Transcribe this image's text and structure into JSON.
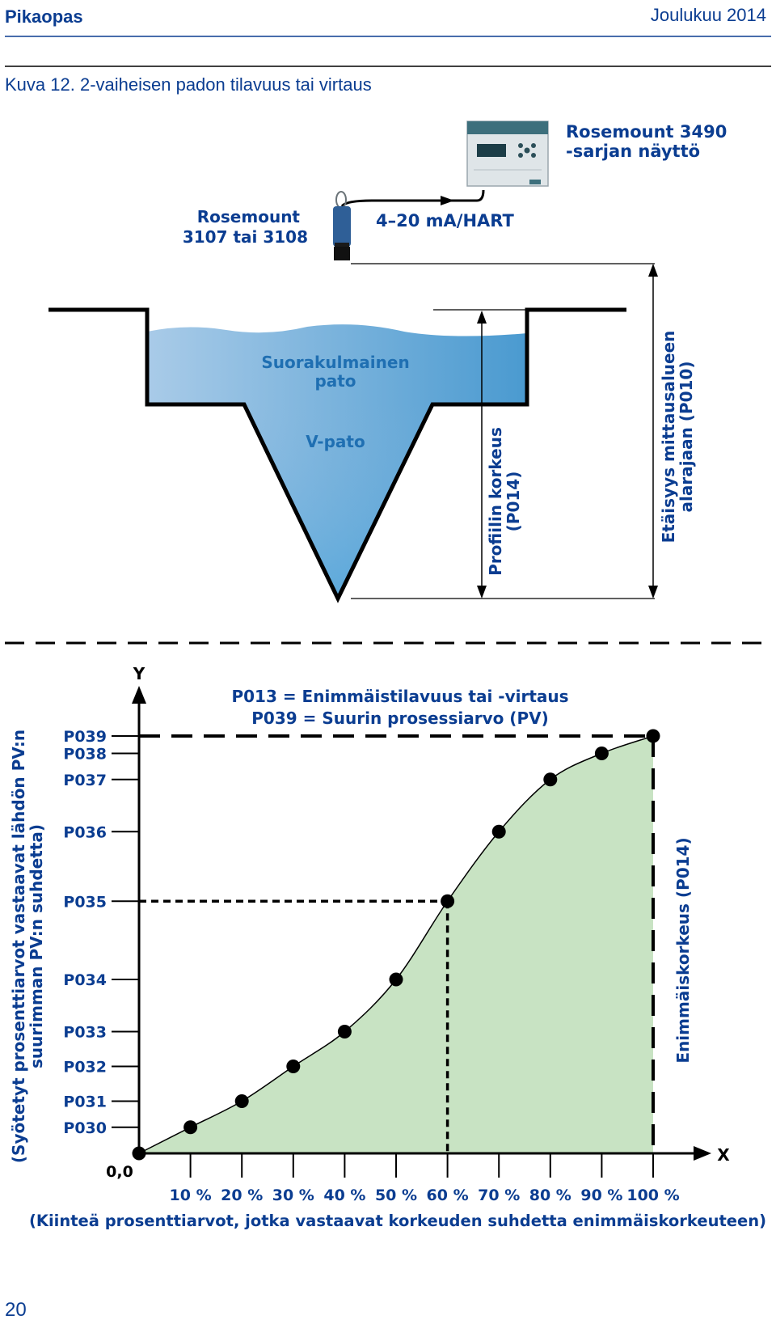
{
  "header": {
    "left": "Pikaopas",
    "right": "Joulukuu 2014"
  },
  "figure_title": "Kuva 12. 2-vaiheisen padon tilavuus tai virtaus",
  "page_number": "20",
  "colors": {
    "text_blue": "#0b3d91",
    "water_light": "#a9cbe8",
    "water_dark": "#4a9ad0",
    "curve_fill": "#c8e3c3"
  },
  "top_diagram": {
    "display_label_1": "Rosemount 3490",
    "display_label_2": "-sarjan näyttö",
    "transmitter_label_1": "Rosemount",
    "transmitter_label_2": "3107 tai 3108",
    "signal_label": "4–20 mA/HART",
    "rect_weir_label_1": "Suorakulmainen",
    "rect_weir_label_2": "pato",
    "v_weir_label": "V-pato",
    "profile_height_1": "Profiilin korkeus",
    "profile_height_2": "(P014)",
    "distance_1": "Etäisyys mittausalueen",
    "distance_2": "alarajaan (P010)"
  },
  "chart_data": {
    "type": "line",
    "y_axis_letter": "Y",
    "x_axis_letter": "X",
    "origin_label": "0,0",
    "annotation_1": "P013 = Enimmäistilavuus tai -virtaus",
    "annotation_2": "P039 = Suurin prosessiarvo (PV)",
    "right_label": "Enimmäiskorkeus (P014)",
    "ylabel_1": "(Syötetyt prosenttiarvot vastaavat lähdön PV:n",
    "ylabel_2": "suurimman PV:n suhdetta)",
    "xlabel": "(Kiinteä prosenttiarvot, jotka vastaavat korkeuden suhdetta enimmäiskorkeuteen)",
    "x_ticks": [
      "10 %",
      "20 %",
      "30 %",
      "40 %",
      "50 %",
      "60 %",
      "70 %",
      "80 %",
      "90 %",
      "100 %"
    ],
    "x": [
      0,
      10,
      20,
      30,
      40,
      50,
      60,
      70,
      80,
      90,
      100
    ],
    "y_labels": [
      "P030",
      "P031",
      "P032",
      "P033",
      "P034",
      "P035",
      "P036",
      "P037",
      "P038",
      "P039"
    ],
    "y": [
      0,
      3,
      6,
      10,
      14,
      20,
      29,
      37,
      43,
      46,
      48
    ],
    "highlight_x": 60
  }
}
